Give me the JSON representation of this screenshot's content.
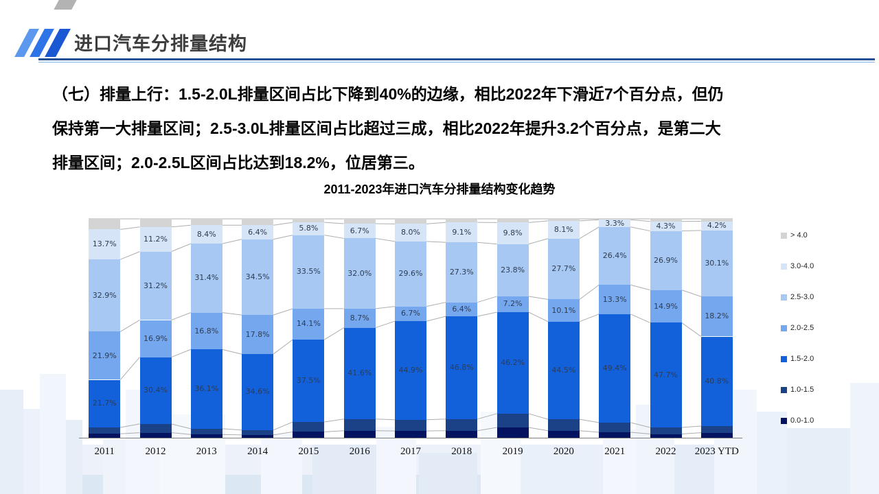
{
  "header": {
    "title": "进口汽车分排量结构"
  },
  "paragraph": {
    "lines": [
      "（七）排量上行：1.5-2.0L排量区间占比下降到40%的边缘，相比2022年下滑近7个百分点，但仍",
      "保持第一大排量区间；2.5-3.0L排量区间占比超过三成，相比2022年提升3.2个百分点，是第二大",
      "排量区间；2.0-2.5L区间占比达到18.2%，位居第三。"
    ]
  },
  "chart_data": {
    "type": "bar",
    "subtype": "stacked-100-percent",
    "title": "2011-2023年进口汽车分排量结构变化趋势",
    "unit": "%",
    "ylim": [
      0,
      100
    ],
    "grid": false,
    "legend_position": "right",
    "categories": [
      "2011",
      "2012",
      "2013",
      "2014",
      "2015",
      "2016",
      "2017",
      "2018",
      "2019",
      "2020",
      "2021",
      "2022",
      "2023 YTD"
    ],
    "series": [
      {
        "name": "0.0-1.0",
        "color": "#03135F",
        "labels_shown": false,
        "values": [
          1.8,
          2.3,
          1.5,
          1.3,
          2.7,
          3.2,
          3.1,
          3.2,
          4.7,
          3.2,
          2.5,
          1.7,
          2.3
        ]
      },
      {
        "name": "1.0-1.5",
        "color": "#1B4187",
        "labels_shown": false,
        "values": [
          2.9,
          4.0,
          2.6,
          2.2,
          4.5,
          5.3,
          5.1,
          5.3,
          6.3,
          5.2,
          4.4,
          3.0,
          3.0
        ]
      },
      {
        "name": "1.5-2.0",
        "color": "#1261DB",
        "labels_shown": true,
        "values": [
          21.7,
          30.4,
          36.1,
          34.6,
          37.5,
          41.6,
          44.9,
          46.8,
          46.2,
          44.5,
          49.4,
          47.7,
          40.8
        ]
      },
      {
        "name": "2.0-2.5",
        "color": "#74A7EE",
        "labels_shown": true,
        "values": [
          21.9,
          16.9,
          16.8,
          17.8,
          14.1,
          8.7,
          6.7,
          6.4,
          7.2,
          10.1,
          13.3,
          14.9,
          18.2
        ]
      },
      {
        "name": "2.5-3.0",
        "color": "#A6C8F3",
        "labels_shown": true,
        "values": [
          32.9,
          31.2,
          31.4,
          34.5,
          33.5,
          32.0,
          29.6,
          27.3,
          23.8,
          27.7,
          26.4,
          26.9,
          30.1
        ]
      },
      {
        "name": "3.0-4.0",
        "color": "#D6E4F8",
        "labels_shown": true,
        "values": [
          13.7,
          11.2,
          8.4,
          6.4,
          5.8,
          6.7,
          8.0,
          9.1,
          9.8,
          8.1,
          3.3,
          4.3,
          4.2
        ]
      },
      {
        "name": "> 4.0",
        "color": "#D4D4D4",
        "labels_shown": false,
        "values": [
          5.1,
          4.0,
          3.2,
          3.2,
          1.9,
          2.5,
          2.6,
          1.9,
          2.0,
          1.2,
          0.7,
          1.5,
          1.4
        ]
      }
    ]
  },
  "theme": {
    "accent_rule_dark": "#234F96",
    "accent_rule_light": "#7FB0E8",
    "title_color": "#3D3D3D",
    "connector_line_color": "#ADADAD",
    "axis_color": "#7F7F7F",
    "data_label_color": "#2E3C52"
  }
}
